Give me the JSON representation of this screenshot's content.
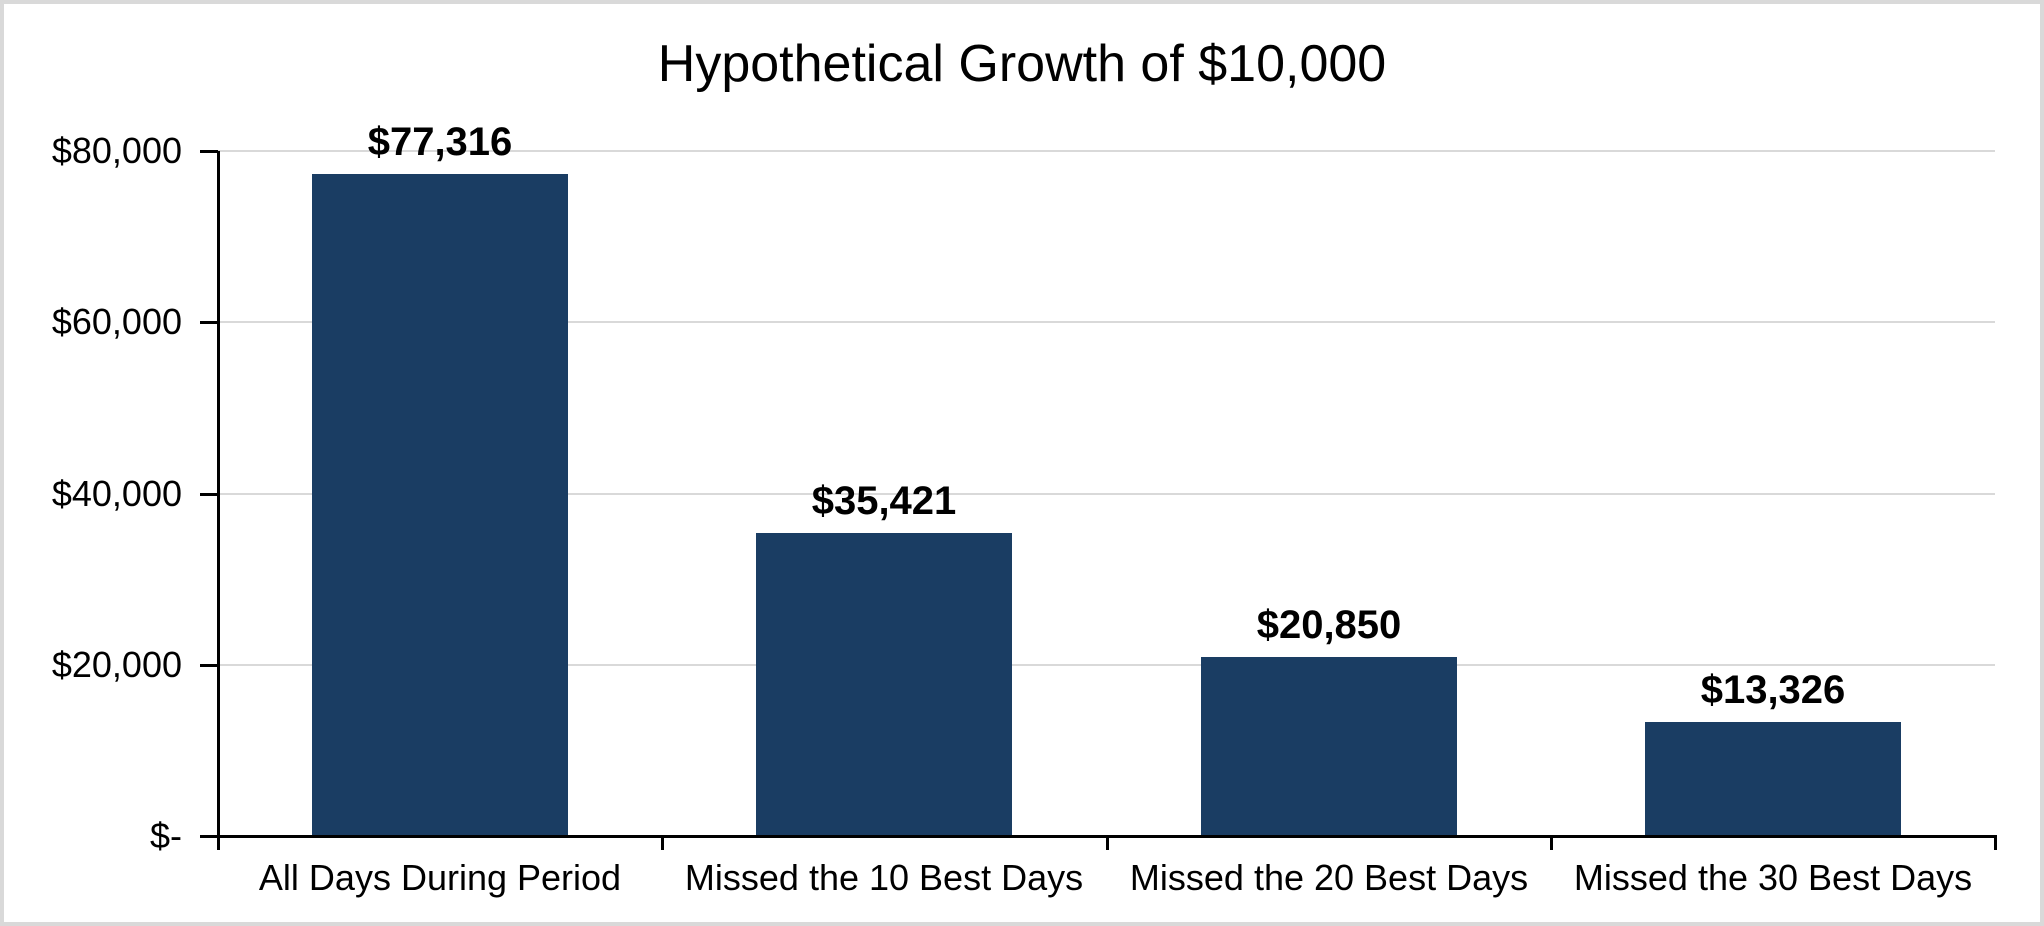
{
  "chart_data": {
    "type": "bar",
    "title": "Hypothetical Growth of $10,000",
    "categories": [
      "All Days During Period",
      "Missed the 10 Best Days",
      "Missed the 20 Best Days",
      "Missed the 30 Best Days"
    ],
    "values": [
      77316,
      35421,
      20850,
      13326
    ],
    "data_labels": [
      "$77,316",
      "$35,421",
      "$20,850",
      "$13,326"
    ],
    "xlabel": "",
    "ylabel": "",
    "ylim": [
      0,
      80000
    ],
    "y_ticks": [
      {
        "value": 80000,
        "label": "$80,000"
      },
      {
        "value": 60000,
        "label": "$60,000"
      },
      {
        "value": 40000,
        "label": "$40,000"
      },
      {
        "value": 20000,
        "label": "$20,000"
      },
      {
        "value": 0,
        "label": "$-"
      }
    ],
    "grid": true,
    "legend": "none",
    "colors": {
      "bar": "#1A3D63",
      "gridline": "#D9D9D9",
      "axis": "#000000",
      "text": "#000000",
      "frame_border": "#D9D9D9",
      "background": "#FFFFFF"
    }
  }
}
